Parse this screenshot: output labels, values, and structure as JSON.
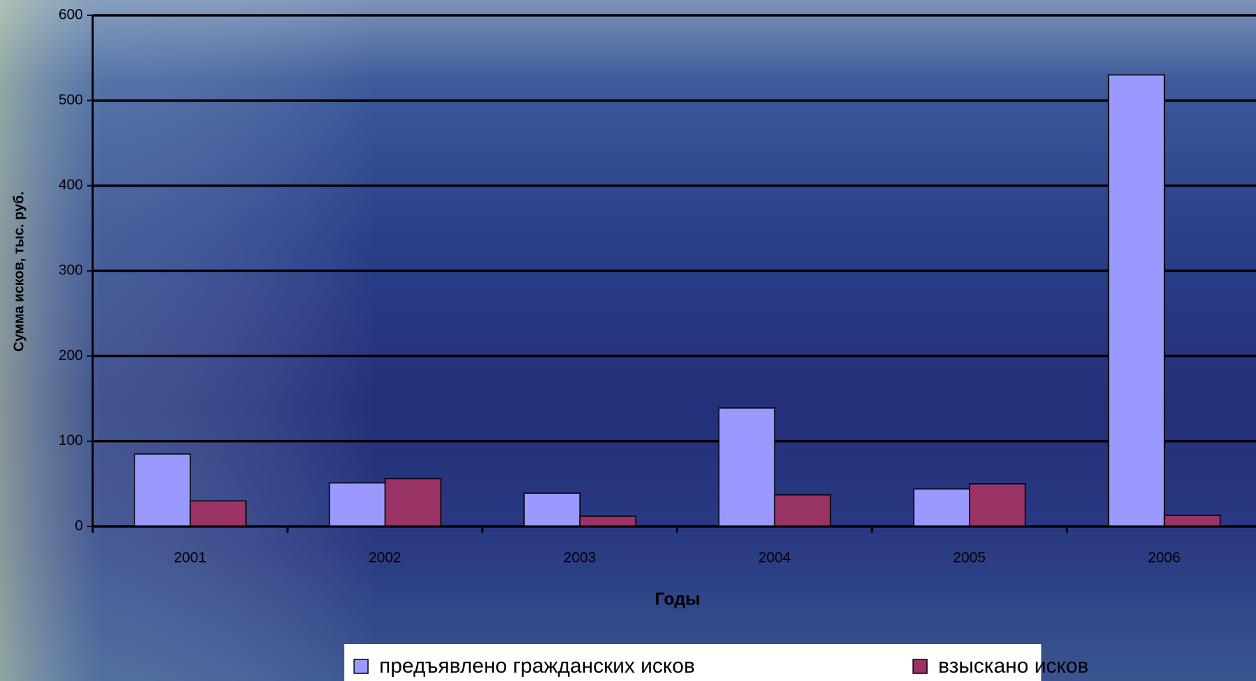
{
  "chart_data": {
    "type": "bar",
    "categories": [
      "2001",
      "2002",
      "2003",
      "2004",
      "2005",
      "2006"
    ],
    "series": [
      {
        "name": "предъявлено гражданских исков",
        "color": "#9999ff",
        "values": [
          85,
          51,
          39,
          139,
          44,
          530
        ]
      },
      {
        "name": "взыскано исков",
        "color": "#993366",
        "values": [
          30,
          56,
          12,
          37,
          50,
          13
        ]
      }
    ],
    "x_label": "Годы",
    "y_label": "Сумма исков, тыс. руб.",
    "ylim": [
      0,
      600
    ],
    "yticks": [
      0,
      100,
      200,
      300,
      400,
      500,
      600
    ],
    "grid": true,
    "legend": "bottom"
  }
}
